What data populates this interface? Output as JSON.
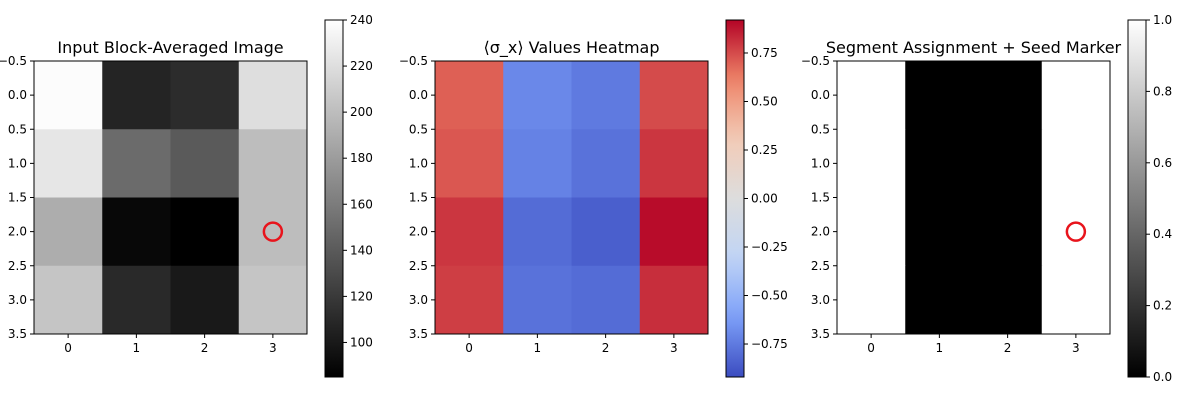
{
  "chart_data": [
    {
      "type": "heatmap",
      "title": "Input Block-Averaged Image",
      "colormap": "gray",
      "x_ticks": [
        "0",
        "1",
        "2",
        "3"
      ],
      "y_ticks": [
        "−0.5",
        "0.0",
        "0.5",
        "1.0",
        "1.5",
        "2.0",
        "2.5",
        "3.0",
        "3.5"
      ],
      "values": [
        [
          238,
          107,
          112,
          220
        ],
        [
          225,
          150,
          140,
          200
        ],
        [
          190,
          90,
          85,
          200
        ],
        [
          205,
          110,
          100,
          205
        ]
      ],
      "vmin": 85,
      "vmax": 240,
      "colorbar_ticks": [
        "100",
        "120",
        "140",
        "160",
        "180",
        "200",
        "220",
        "240"
      ],
      "colorbar_values": [
        100,
        120,
        140,
        160,
        180,
        200,
        220,
        240
      ],
      "seed_marker": {
        "row": 2,
        "col": 3,
        "color": "#e8141c"
      }
    },
    {
      "type": "heatmap",
      "title": "⟨σ_x⟩ Values Heatmap",
      "colormap": "coolwarm",
      "x_ticks": [
        "0",
        "1",
        "2",
        "3"
      ],
      "y_ticks": [
        "−0.5",
        "0.0",
        "0.5",
        "1.0",
        "1.5",
        "2.0",
        "2.5",
        "3.0",
        "3.5"
      ],
      "values": [
        [
          0.7,
          -0.7,
          -0.75,
          0.75
        ],
        [
          0.72,
          -0.72,
          -0.78,
          0.8
        ],
        [
          0.8,
          -0.8,
          -0.85,
          0.9
        ],
        [
          0.78,
          -0.78,
          -0.8,
          0.82
        ]
      ],
      "vmin": -0.92,
      "vmax": 0.92,
      "colorbar_ticks": [
        "−0.75",
        "−0.50",
        "−0.25",
        "0.00",
        "0.25",
        "0.50",
        "0.75"
      ],
      "colorbar_values": [
        -0.75,
        -0.5,
        -0.25,
        0.0,
        0.25,
        0.5,
        0.75
      ]
    },
    {
      "type": "heatmap",
      "title": "Segment Assignment + Seed Marker",
      "colormap": "gray",
      "x_ticks": [
        "0",
        "1",
        "2",
        "3"
      ],
      "y_ticks": [
        "−0.5",
        "0.0",
        "0.5",
        "1.0",
        "1.5",
        "2.0",
        "2.5",
        "3.0",
        "3.5"
      ],
      "values": [
        [
          1,
          0,
          0,
          1
        ],
        [
          1,
          0,
          0,
          1
        ],
        [
          1,
          0,
          0,
          1
        ],
        [
          1,
          0,
          0,
          1
        ]
      ],
      "vmin": 0,
      "vmax": 1,
      "colorbar_ticks": [
        "0.0",
        "0.2",
        "0.4",
        "0.6",
        "0.8",
        "1.0"
      ],
      "colorbar_values": [
        0,
        0.2,
        0.4,
        0.6,
        0.8,
        1.0
      ],
      "seed_marker": {
        "row": 2,
        "col": 3,
        "color": "#e8141c"
      }
    }
  ]
}
